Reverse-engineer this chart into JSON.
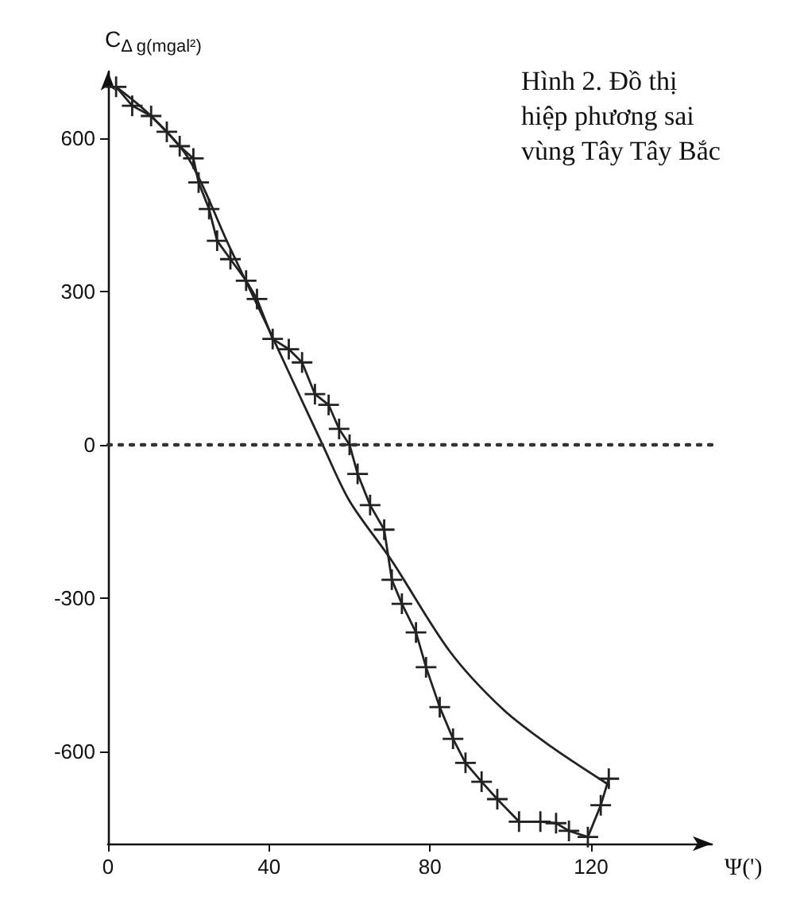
{
  "chart_data": {
    "type": "line",
    "xlabel": "Ψ(')",
    "ylabel": "C$_{Δ g(mgal²)}$",
    "annotations": [
      "Hình 2. Đồ thị hiệp phương sai vùng Tây Tây Bắc"
    ],
    "xlim": [
      0,
      150
    ],
    "xticks": [
      0,
      40,
      80,
      120
    ],
    "ylim": [
      -780,
      730
    ],
    "yticks": [
      -600,
      -300,
      0,
      300,
      600
    ],
    "ref_lines": [
      {
        "axis": "y",
        "value": 0,
        "label": null,
        "line_style": "dotted",
        "color": "#333333"
      }
    ],
    "series": [
      {
        "color": "#222222",
        "marker": "cross",
        "x": [
          2,
          6,
          10.7,
          14.6,
          17.8,
          21.2,
          22.5,
          25.1,
          27.1,
          30.4,
          34.3,
          37,
          40.9,
          44.9,
          48.2,
          51.4,
          54.8,
          57.4,
          60,
          62,
          65.1,
          68.6,
          70.5,
          73,
          76.5,
          79,
          82.4,
          85.7,
          88.8,
          92.8,
          96.7,
          102.1,
          107.4,
          111.3,
          114.5,
          119.2,
          122.4,
          124.4
        ],
        "values": [
          700,
          663,
          643,
          612,
          584,
          560,
          513,
          461,
          399,
          363,
          321,
          285,
          207,
          187,
          161,
          99,
          78,
          31,
          0,
          -57,
          -118,
          -166,
          -264,
          -311,
          -367,
          -435,
          -513,
          -575,
          -622,
          -659,
          -693,
          -737,
          -737,
          -740,
          -755,
          -767,
          -705,
          -653
        ]
      },
      {
        "color": "#222222",
        "marker": "none",
        "x": [
          2,
          10,
          20,
          30,
          40,
          45,
          53.3,
          60,
          70.5,
          84.9,
          98.2,
          110,
          124.4
        ],
        "values": [
          700,
          648,
          560,
          390,
          225,
          140,
          0,
          -110,
          -227,
          -404,
          -518,
          -590,
          -665
        ]
      }
    ]
  }
}
